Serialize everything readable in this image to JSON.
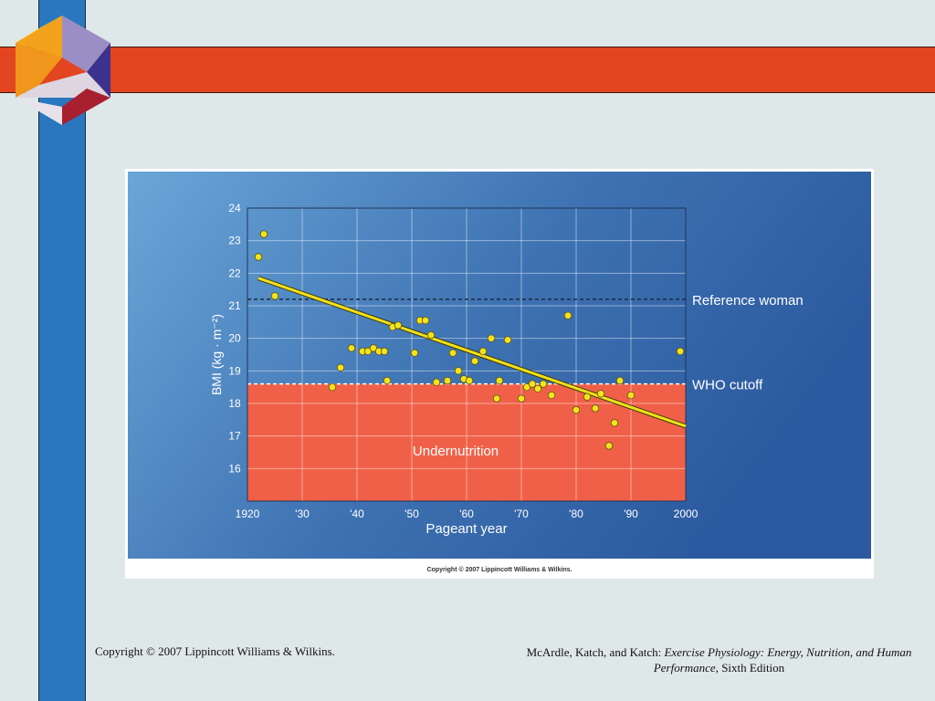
{
  "slide": {
    "footer_left": "Copyright © 2007 Lippincott Williams & Wilkins.",
    "footer_right_prefix": "McArdle, Katch, and Katch: ",
    "footer_right_title": "Exercise Physiology: Energy, Nutrition, and Human Performance,",
    "footer_right_suffix": " Sixth Edition",
    "figure_copyright": "Copyright © 2007 Lippincott Williams & Wilkins.",
    "colors": {
      "background": "#dfe8e8",
      "left_bar": "#2b77bf",
      "top_band": "#e2451f",
      "undernutrition_zone": "#f06048",
      "trend_line": "#f2e01a",
      "points": "#f4e21c"
    }
  },
  "chart_data": {
    "type": "scatter",
    "title": "",
    "xlabel": "Pageant year",
    "ylabel": "BMI (kg · m⁻²)",
    "xlim": [
      1920,
      2000
    ],
    "ylim": [
      15,
      24
    ],
    "x_ticks": [
      1920,
      1930,
      1940,
      1950,
      1960,
      1970,
      1980,
      1990,
      2000
    ],
    "x_tick_labels": [
      "1920",
      "'30",
      "'40",
      "'50",
      "'60",
      "'70",
      "'80",
      "'90",
      "2000"
    ],
    "y_ticks": [
      16,
      17,
      18,
      19,
      20,
      21,
      22,
      23,
      24
    ],
    "y_tick_labels": [
      "16",
      "17",
      "18",
      "19",
      "20",
      "21",
      "22",
      "23",
      "24"
    ],
    "grid": true,
    "reference_lines": [
      {
        "label": "Reference woman",
        "y": 21.2
      },
      {
        "label": "WHO cutoff",
        "y": 18.6
      }
    ],
    "zone": {
      "label": "Undernutrition",
      "y_from": 15,
      "y_to": 18.6
    },
    "trend_line": {
      "x": [
        1922,
        2000
      ],
      "y": [
        21.85,
        17.3
      ]
    },
    "points": [
      {
        "x": 1922,
        "y": 22.5
      },
      {
        "x": 1923,
        "y": 23.2
      },
      {
        "x": 1925,
        "y": 21.3
      },
      {
        "x": 1935.5,
        "y": 18.5
      },
      {
        "x": 1937,
        "y": 19.1
      },
      {
        "x": 1939,
        "y": 19.7
      },
      {
        "x": 1941,
        "y": 19.6
      },
      {
        "x": 1942,
        "y": 19.6
      },
      {
        "x": 1943,
        "y": 19.7
      },
      {
        "x": 1944,
        "y": 19.6
      },
      {
        "x": 1945,
        "y": 19.6
      },
      {
        "x": 1945.5,
        "y": 18.7
      },
      {
        "x": 1946.5,
        "y": 20.35
      },
      {
        "x": 1947.5,
        "y": 20.4
      },
      {
        "x": 1950.5,
        "y": 19.55
      },
      {
        "x": 1951.5,
        "y": 20.55
      },
      {
        "x": 1952.5,
        "y": 20.55
      },
      {
        "x": 1953.5,
        "y": 20.1
      },
      {
        "x": 1954.5,
        "y": 18.65
      },
      {
        "x": 1956.5,
        "y": 18.7
      },
      {
        "x": 1957.5,
        "y": 19.55
      },
      {
        "x": 1958.5,
        "y": 19.0
      },
      {
        "x": 1959.5,
        "y": 18.75
      },
      {
        "x": 1960.5,
        "y": 18.7
      },
      {
        "x": 1961.5,
        "y": 19.3
      },
      {
        "x": 1963,
        "y": 19.6
      },
      {
        "x": 1964.5,
        "y": 20.0
      },
      {
        "x": 1965.5,
        "y": 18.15
      },
      {
        "x": 1966,
        "y": 18.7
      },
      {
        "x": 1967.5,
        "y": 19.95
      },
      {
        "x": 1970,
        "y": 18.15
      },
      {
        "x": 1971,
        "y": 18.5
      },
      {
        "x": 1972,
        "y": 18.6
      },
      {
        "x": 1973,
        "y": 18.45
      },
      {
        "x": 1974,
        "y": 18.6
      },
      {
        "x": 1975.5,
        "y": 18.25
      },
      {
        "x": 1978.5,
        "y": 20.7
      },
      {
        "x": 1980,
        "y": 17.8
      },
      {
        "x": 1982,
        "y": 18.2
      },
      {
        "x": 1983.5,
        "y": 17.85
      },
      {
        "x": 1984.5,
        "y": 18.3
      },
      {
        "x": 1986,
        "y": 16.7
      },
      {
        "x": 1987,
        "y": 17.4
      },
      {
        "x": 1988,
        "y": 18.7
      },
      {
        "x": 1990,
        "y": 18.25
      },
      {
        "x": 1999,
        "y": 19.6
      }
    ]
  }
}
